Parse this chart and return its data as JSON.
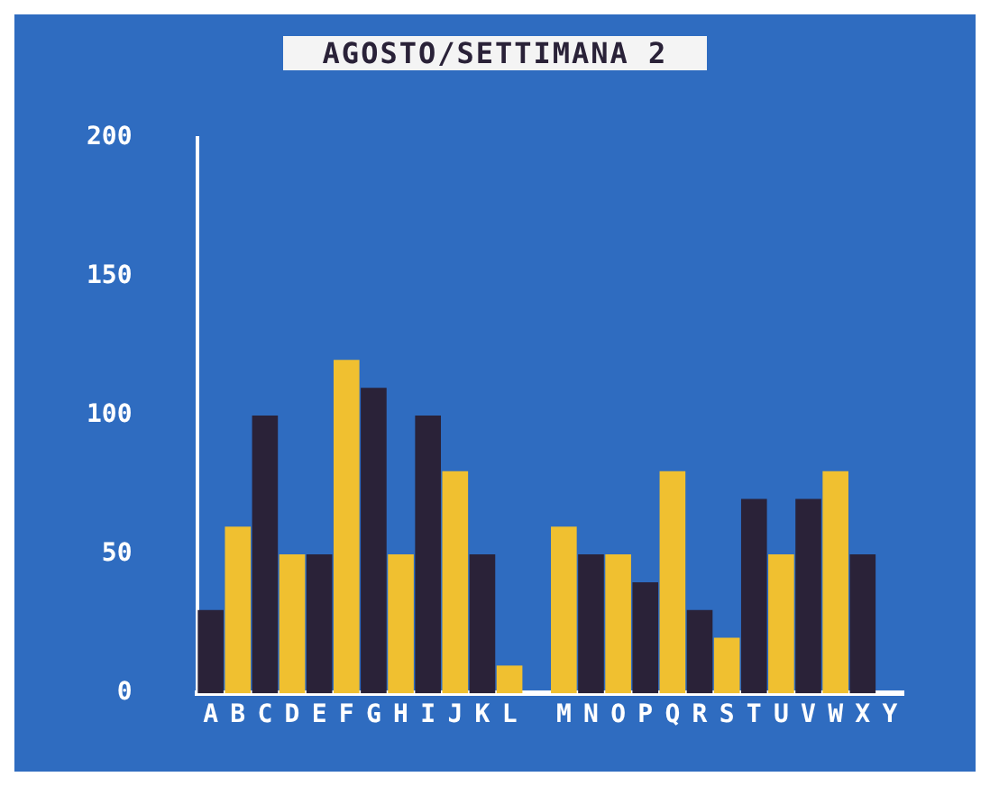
{
  "chart_data": {
    "type": "bar",
    "title": "AGOSTO/SETTIMANA 2",
    "categories": [
      "A",
      "B",
      "C",
      "D",
      "E",
      "F",
      "G",
      "H",
      "I",
      "J",
      "K",
      "L",
      null,
      "M",
      "N",
      "O",
      "P",
      "Q",
      "R",
      "S",
      "T",
      "U",
      "V",
      "W",
      "X",
      "Y"
    ],
    "values": [
      30,
      60,
      100,
      50,
      50,
      120,
      110,
      50,
      100,
      80,
      50,
      10,
      null,
      60,
      50,
      50,
      40,
      80,
      30,
      20,
      70,
      50,
      70,
      80,
      50,
      null
    ],
    "colors": [
      "#2a2238",
      "#f0c030",
      "#2a2238",
      "#f0c030",
      "#2a2238",
      "#f0c030",
      "#2a2238",
      "#f0c030",
      "#2a2238",
      "#f0c030",
      "#2a2238",
      "#f0c030",
      "#2a2238",
      "#f0c030",
      "#2a2238",
      "#f0c030",
      "#2a2238",
      "#f0c030",
      "#2a2238",
      "#f0c030",
      "#2a2238",
      "#f0c030",
      "#2a2238",
      "#f0c030",
      "#2a2238",
      "#f0c030"
    ],
    "ylim": [
      0,
      200
    ],
    "yticks": [
      0,
      50,
      100,
      150,
      200
    ],
    "grid": false,
    "legend": false
  }
}
